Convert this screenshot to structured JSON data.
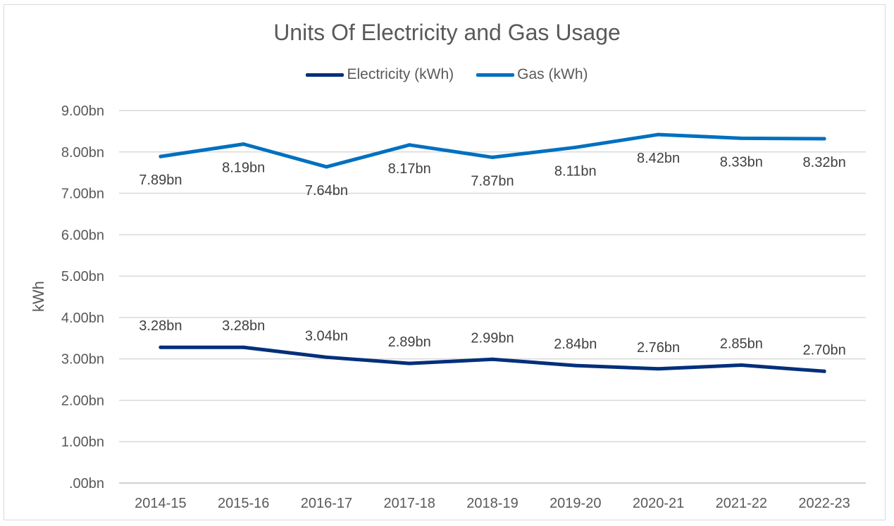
{
  "chart_data": {
    "type": "line",
    "title": "Units Of Electricity and Gas Usage",
    "ylabel": "kWh",
    "xlabel": "",
    "categories": [
      "2014-15",
      "2015-16",
      "2016-17",
      "2017-18",
      "2018-19",
      "2019-20",
      "2020-21",
      "2021-22",
      "2022-23"
    ],
    "ylim": [
      0,
      9
    ],
    "yticks": [
      0,
      1,
      2,
      3,
      4,
      5,
      6,
      7,
      8,
      9
    ],
    "ytick_labels": [
      ".00bn",
      "1.00bn",
      "2.00bn",
      "3.00bn",
      "4.00bn",
      "5.00bn",
      "6.00bn",
      "7.00bn",
      "8.00bn",
      "9.00bn"
    ],
    "grid": true,
    "legend_position": "top",
    "series": [
      {
        "name": "Electricity (kWh)",
        "color": "#002f7a",
        "values": [
          3.28,
          3.28,
          3.04,
          2.89,
          2.99,
          2.84,
          2.76,
          2.85,
          2.7
        ],
        "labels": [
          "3.28bn",
          "3.28bn",
          "3.04bn",
          "2.89bn",
          "2.99bn",
          "2.84bn",
          "2.76bn",
          "2.85bn",
          "2.70bn"
        ]
      },
      {
        "name": "Gas (kWh)",
        "color": "#0070c0",
        "values": [
          7.89,
          8.19,
          7.64,
          8.17,
          7.87,
          8.11,
          8.42,
          8.33,
          8.32
        ],
        "labels": [
          "7.89bn",
          "8.19bn",
          "7.64bn",
          "8.17bn",
          "7.87bn",
          "8.11bn",
          "8.42bn",
          "8.33bn",
          "8.32bn"
        ]
      }
    ]
  }
}
